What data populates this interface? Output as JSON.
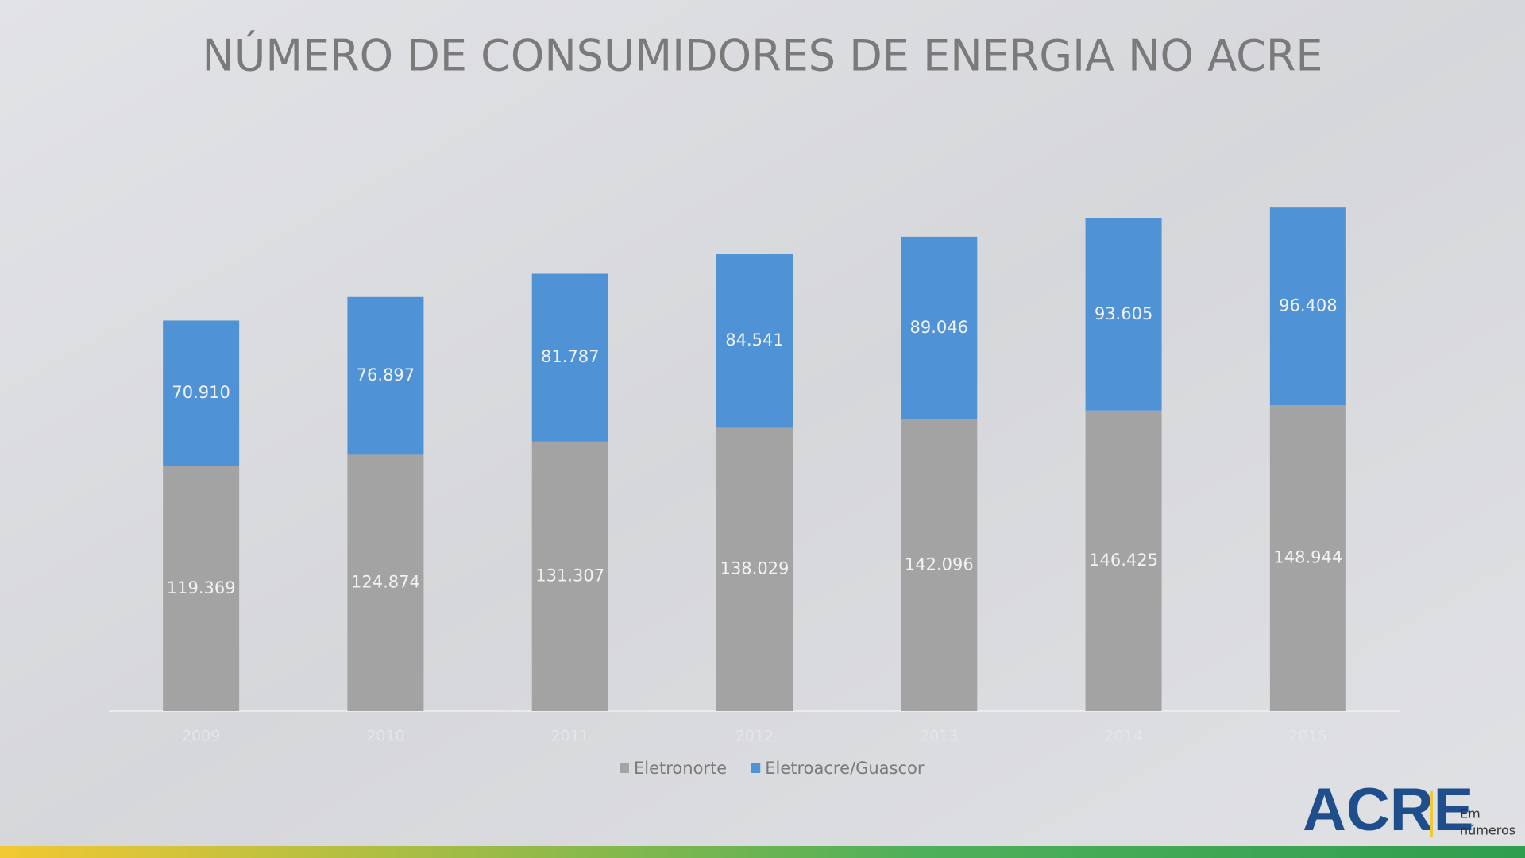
{
  "chart_data": {
    "type": "stacked_bar",
    "title": "NÚMERO DE CONSUMIDORES DE ENERGIA NO ACRE",
    "categories": [
      "2009",
      "2010",
      "2011",
      "2012",
      "2013",
      "2014",
      "2015"
    ],
    "series": [
      {
        "name": "Eletronorte",
        "color": "#a3a3a3",
        "values": [
          119369,
          124874,
          131307,
          138029,
          142096,
          146425,
          148944
        ],
        "value_labels": [
          "119.369",
          "124.874",
          "131.307",
          "138.029",
          "142.096",
          "146.425",
          "148.944"
        ]
      },
      {
        "name": "Eletroacre/Guascor",
        "color": "#4f93d6",
        "values": [
          70910,
          76897,
          81787,
          84541,
          89046,
          93605,
          96408
        ],
        "value_labels": [
          "70.910",
          "76.897",
          "81.787",
          "84.541",
          "89.046",
          "93.605",
          "96.408"
        ]
      }
    ],
    "ylim": [
      0,
      300000
    ],
    "legend": "bottom"
  },
  "logo": {
    "name": "ACRE",
    "line1": "Em",
    "line2": "números"
  }
}
